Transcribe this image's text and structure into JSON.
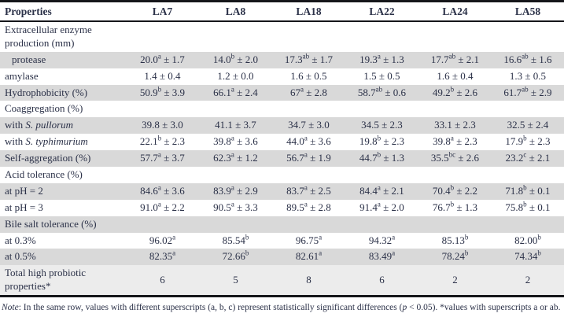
{
  "colors": {
    "page_bg": "#ffffff",
    "text": "#2b3148",
    "rule": "#15161a",
    "row_shade_gray": "#d9d9d9",
    "row_shade_light": "#ececec"
  },
  "table": {
    "columns": [
      "Properties",
      "LA7",
      "LA8",
      "LA18",
      "LA22",
      "LA24",
      "LA58"
    ],
    "rows": [
      {
        "kind": "section",
        "lines": [
          "Extracellular enzyme",
          "production (mm)"
        ],
        "shade": "white"
      },
      {
        "kind": "data",
        "label": "protease",
        "indent": true,
        "shade": "gray",
        "cells": [
          {
            "v": "20.0",
            "sup": "a",
            "pm": "1.7"
          },
          {
            "v": "14.0",
            "sup": "b",
            "pm": "2.0"
          },
          {
            "v": "17.3",
            "sup": "ab",
            "pm": "1.7"
          },
          {
            "v": "19.3",
            "sup": "a",
            "pm": "1.3"
          },
          {
            "v": "17.7",
            "sup": "ab",
            "pm": "2.1"
          },
          {
            "v": "16.6",
            "sup": "ab",
            "pm": "1.6"
          }
        ]
      },
      {
        "kind": "data",
        "label": "amylase",
        "shade": "white",
        "cells": [
          {
            "v": "1.4",
            "pm": "0.4"
          },
          {
            "v": "1.2",
            "pm": "0.0"
          },
          {
            "v": "1.6",
            "pm": "0.5"
          },
          {
            "v": "1.5",
            "pm": "0.5"
          },
          {
            "v": "1.6",
            "pm": "0.4"
          },
          {
            "v": "1.3",
            "pm": "0.5"
          }
        ]
      },
      {
        "kind": "data",
        "label": "Hydrophobicity (%)",
        "shade": "gray",
        "cells": [
          {
            "v": "50.9",
            "sup": "b",
            "pm": "3.9"
          },
          {
            "v": "66.1",
            "sup": "a",
            "pm": "2.4"
          },
          {
            "v": "67",
            "sup": "a",
            "pm": "2.8"
          },
          {
            "v": "58.7",
            "sup": "ab",
            "pm": "0.6"
          },
          {
            "v": "49.2",
            "sup": "b",
            "pm": "2.6"
          },
          {
            "v": "61.7",
            "sup": "ab",
            "pm": "2.9"
          }
        ]
      },
      {
        "kind": "section",
        "label": "Coaggregation (%)",
        "shade": "white"
      },
      {
        "kind": "data",
        "labelPre": "with ",
        "labelItalic": "S. pullorum",
        "shade": "gray",
        "cells": [
          {
            "v": "39.8",
            "pm": "3.0"
          },
          {
            "v": "41.1",
            "pm": "3.7"
          },
          {
            "v": "34.7",
            "pm": "3.0"
          },
          {
            "v": "34.5",
            "pm": "2.3"
          },
          {
            "v": "33.1",
            "pm": "2.3"
          },
          {
            "v": "32.5",
            "pm": "2.4"
          }
        ]
      },
      {
        "kind": "data",
        "labelPre": "with ",
        "labelItalic": "S. typhimurium",
        "shade": "white",
        "cells": [
          {
            "v": "22.1",
            "sup": "b",
            "pm": "2.3"
          },
          {
            "v": "39.8",
            "sup": "a",
            "pm": "3.6"
          },
          {
            "v": "44.0",
            "sup": "a",
            "pm": "3.6"
          },
          {
            "v": "19.8",
            "sup": "b",
            "pm": "2.3"
          },
          {
            "v": "39.8",
            "sup": "a",
            "pm": "2.3"
          },
          {
            "v": "17.9",
            "sup": "b",
            "pm": "2.3"
          }
        ]
      },
      {
        "kind": "data",
        "label": "Self-aggregation (%)",
        "shade": "gray",
        "cells": [
          {
            "v": "57.7",
            "sup": "a",
            "pm": "3.7"
          },
          {
            "v": "62.3",
            "sup": "a",
            "pm": "1.2"
          },
          {
            "v": "56.7",
            "sup": "a",
            "pm": "1.9"
          },
          {
            "v": "44.7",
            "sup": "b",
            "pm": "1.3"
          },
          {
            "v": "35.5",
            "sup": "bc",
            "pm": "2.6"
          },
          {
            "v": "23.2",
            "sup": "c",
            "pm": "2.1"
          }
        ]
      },
      {
        "kind": "section",
        "label": "Acid tolerance (%)",
        "shade": "white"
      },
      {
        "kind": "data",
        "label": "at pH = 2",
        "shade": "gray",
        "cells": [
          {
            "v": "84.6",
            "sup": "a",
            "pm": "3.6"
          },
          {
            "v": "83.9",
            "sup": "a",
            "pm": "2.9"
          },
          {
            "v": "83.7",
            "sup": "a",
            "pm": "2.5"
          },
          {
            "v": "84.4",
            "sup": "a",
            "pm": "2.1"
          },
          {
            "v": "70.4",
            "sup": "b",
            "pm": "2.2"
          },
          {
            "v": "71.8",
            "sup": "b",
            "pm": "0.1"
          }
        ]
      },
      {
        "kind": "data",
        "label": "at pH = 3",
        "shade": "white",
        "cells": [
          {
            "v": "91.0",
            "sup": "a",
            "pm": "2.2"
          },
          {
            "v": "90.5",
            "sup": "a",
            "pm": "3.3"
          },
          {
            "v": "89.5",
            "sup": "a",
            "pm": "2.8"
          },
          {
            "v": "91.4",
            "sup": "a",
            "pm": "2.0"
          },
          {
            "v": "76.7",
            "sup": "b",
            "pm": "1.3"
          },
          {
            "v": "75.8",
            "sup": "b",
            "pm": "0.1"
          }
        ]
      },
      {
        "kind": "section",
        "label": "Bile salt tolerance (%)",
        "shade": "gray"
      },
      {
        "kind": "data",
        "label": "at 0.3%",
        "shade": "white",
        "cells": [
          {
            "v": "96.02",
            "sup": "a"
          },
          {
            "v": "85.54",
            "sup": "b"
          },
          {
            "v": "96.75",
            "sup": "a"
          },
          {
            "v": "94.32",
            "sup": "a"
          },
          {
            "v": "85.13",
            "sup": "b"
          },
          {
            "v": "82.00",
            "sup": "b"
          }
        ]
      },
      {
        "kind": "data",
        "label": "at 0.5%",
        "shade": "gray",
        "cells": [
          {
            "v": "82.35",
            "sup": "a"
          },
          {
            "v": "72.66",
            "sup": "b"
          },
          {
            "v": "82.61",
            "sup": "a"
          },
          {
            "v": "83.49",
            "sup": "a"
          },
          {
            "v": "78.24",
            "sup": "b"
          },
          {
            "v": "74.34",
            "sup": "b"
          }
        ]
      },
      {
        "kind": "data",
        "lines": [
          "Total high probiotic",
          "properties*"
        ],
        "shade": "light",
        "cells": [
          {
            "v": "6"
          },
          {
            "v": "5"
          },
          {
            "v": "8"
          },
          {
            "v": "6"
          },
          {
            "v": "2"
          },
          {
            "v": "2"
          }
        ]
      }
    ]
  },
  "note": {
    "parts": [
      {
        "text": "Note",
        "italic": true
      },
      {
        "text": ": In the same row, values with different superscripts (a, b, c) represent statistically significant differences (",
        "italic": false
      },
      {
        "text": "p",
        "italic": true
      },
      {
        "text": " < 0.05). *values with superscripts a or ab.",
        "italic": false
      }
    ]
  }
}
